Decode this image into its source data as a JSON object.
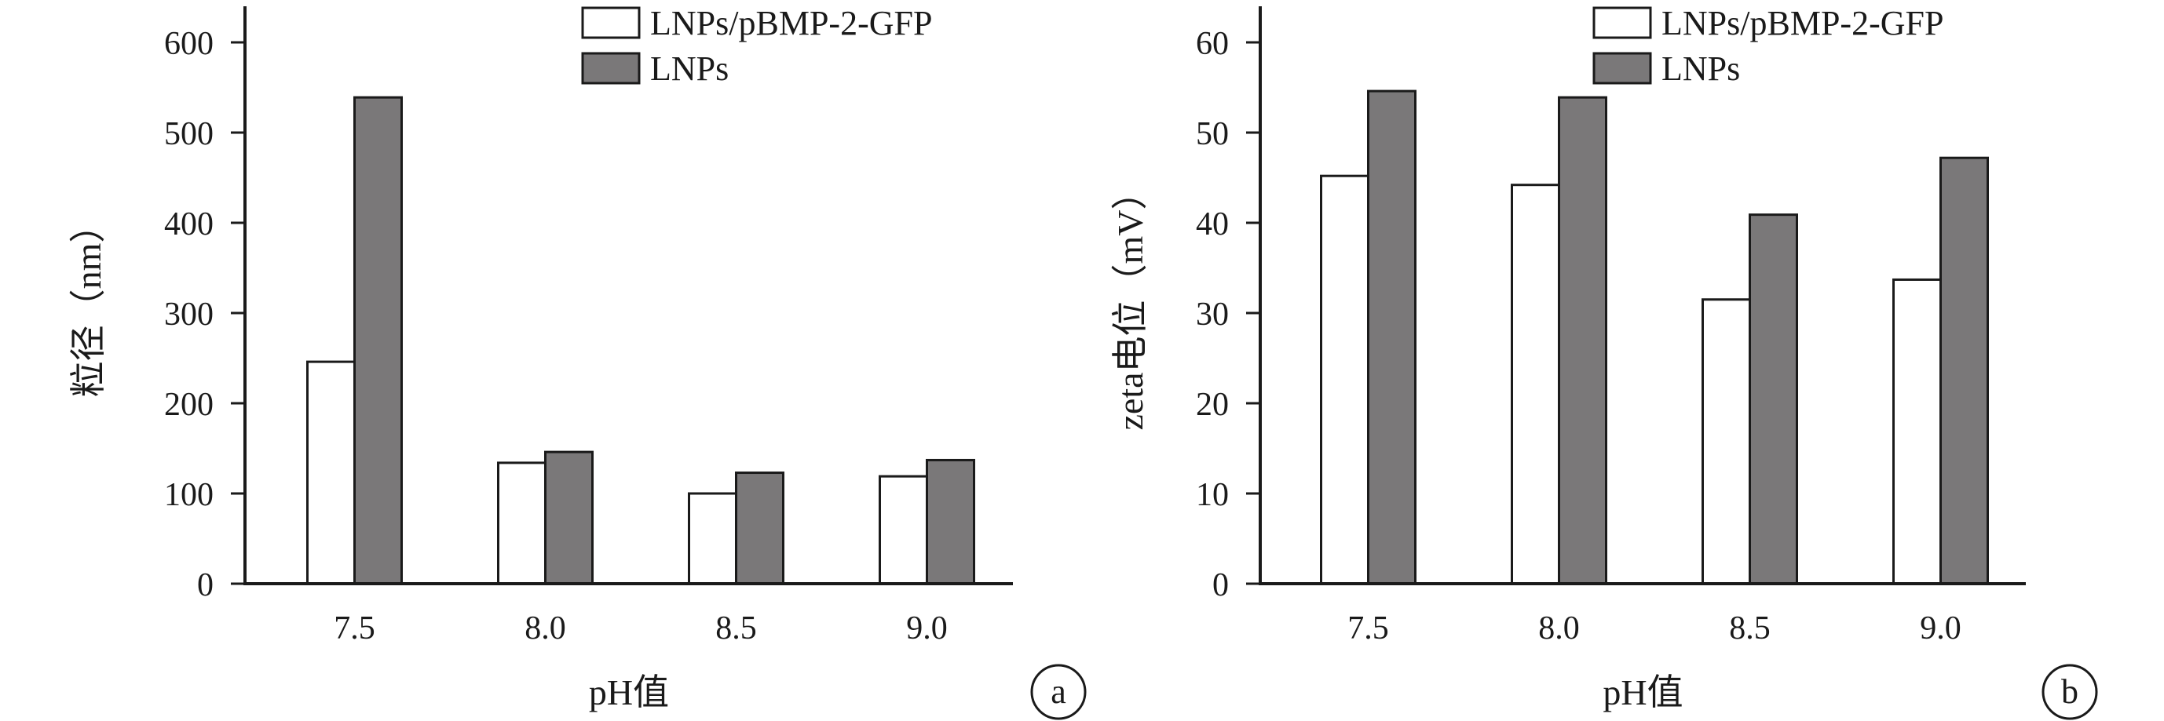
{
  "chart_data": [
    {
      "type": "bar",
      "panel_label": "a",
      "categories": [
        "7.5",
        "8.0",
        "8.5",
        "9.0"
      ],
      "series": [
        {
          "name": "LNPs/pBMP-2-GFP",
          "values": [
            246,
            134,
            100,
            119
          ],
          "color": "#ffffff"
        },
        {
          "name": "LNPs",
          "values": [
            539,
            146,
            123,
            137
          ],
          "color": "#7a7879"
        }
      ],
      "xlabel": "pH值",
      "ylabel": "粒径（nm）",
      "ylim": [
        0,
        640
      ],
      "yticks": [
        0,
        100,
        200,
        300,
        400,
        500,
        600
      ],
      "grid": false,
      "legend": "top-right"
    },
    {
      "type": "bar",
      "panel_label": "b",
      "categories": [
        "7.5",
        "8.0",
        "8.5",
        "9.0"
      ],
      "series": [
        {
          "name": "LNPs/pBMP-2-GFP",
          "values": [
            45.2,
            44.2,
            31.5,
            33.7
          ],
          "color": "#ffffff"
        },
        {
          "name": "LNPs",
          "values": [
            54.6,
            53.9,
            40.9,
            47.2
          ],
          "color": "#7a7879"
        }
      ],
      "xlabel": "pH值",
      "ylabel": "zeta电位（mV）",
      "ylim": [
        0,
        64
      ],
      "yticks": [
        0,
        10,
        20,
        30,
        40,
        50,
        60
      ],
      "grid": false,
      "legend": "top-right"
    }
  ]
}
